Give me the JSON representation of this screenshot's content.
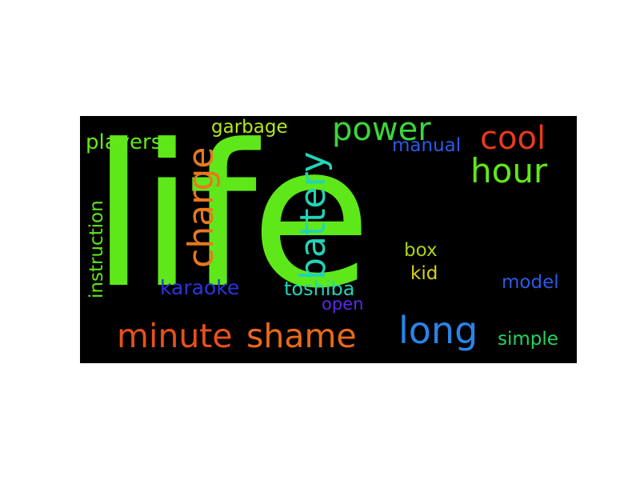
{
  "word_cloud": {
    "background": "#000000",
    "words": [
      {
        "text": "life",
        "color": "#5fe819"
      },
      {
        "text": "minute",
        "color": "#e8501b"
      },
      {
        "text": "shame",
        "color": "#e86a1b"
      },
      {
        "text": "charge",
        "color": "#e8781e"
      },
      {
        "text": "battery",
        "color": "#22d3b8"
      },
      {
        "text": "power",
        "color": "#3bd63b"
      },
      {
        "text": "hour",
        "color": "#5fe819"
      },
      {
        "text": "cool",
        "color": "#e8391c"
      },
      {
        "text": "long",
        "color": "#2a84e8"
      },
      {
        "text": "garbage",
        "color": "#b5e81a"
      },
      {
        "text": "players",
        "color": "#63e81c"
      },
      {
        "text": "manual",
        "color": "#2a5ae8"
      },
      {
        "text": "instruction",
        "color": "#5fe819"
      },
      {
        "text": "karaoke",
        "color": "#2a34e0"
      },
      {
        "text": "toshiba",
        "color": "#22d3b8"
      },
      {
        "text": "open",
        "color": "#5a2ae8"
      },
      {
        "text": "box",
        "color": "#a9d01a"
      },
      {
        "text": "kid",
        "color": "#d8d21c"
      },
      {
        "text": "model",
        "color": "#2a5ae8"
      },
      {
        "text": "simple",
        "color": "#23d65a"
      }
    ]
  }
}
